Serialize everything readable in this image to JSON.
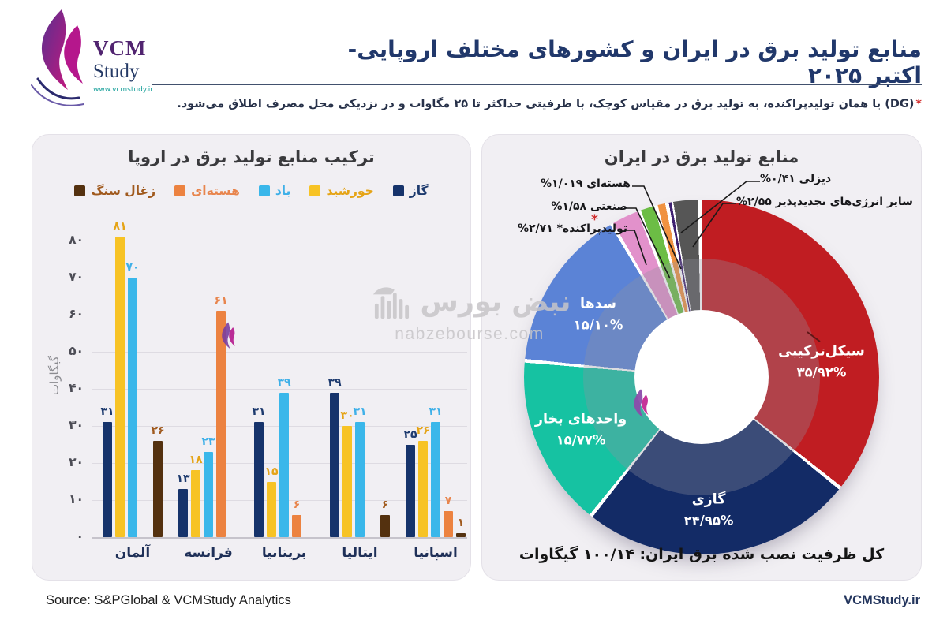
{
  "header": {
    "title": "منابع تولید برق در ایران و کشورهای مختلف اروپایی- اکتبر ۲۰۲۵",
    "subtitle_star": "*",
    "subtitle_dg": "(DG)",
    "subtitle_rest": "یا همان تولیدپراکنده، به تولید برق در مقیاس کوچک، با ظرفیتی حداکثر تا ۲۵ مگاوات و در نزدیکی محل مصرف اطلاق می‌شود."
  },
  "logo": {
    "vcm": "VCM",
    "study": "Study",
    "url": "www.vcmstudy.ir"
  },
  "chart_data": [
    {
      "type": "bar",
      "title": "ترکیب منابع تولید برق در اروپا",
      "ylabel": "گیگاوات",
      "ylim": [
        0,
        80
      ],
      "yticks": [
        "۰",
        "۱۰",
        "۲۰",
        "۳۰",
        "۴۰",
        "۵۰",
        "۶۰",
        "۷۰",
        "۸۰"
      ],
      "grid": true,
      "categories": [
        "آلمان",
        "فرانسه",
        "بریتانیا",
        "ایتالیا",
        "اسپانیا"
      ],
      "series": [
        {
          "name": "گاز",
          "color": "#16336b",
          "label_color": "#1d3a6e",
          "values": [
            31,
            13,
            31,
            39,
            25
          ],
          "labels": [
            "۳۱",
            "۱۳",
            "۳۱",
            "۳۹",
            "۲۵"
          ]
        },
        {
          "name": "خورشید",
          "color": "#f7c325",
          "label_color": "#e5a417",
          "values": [
            81,
            18,
            15,
            30,
            26
          ],
          "labels": [
            "۸۱",
            "۱۸",
            "۱۵",
            "۳۰",
            "۲۶"
          ]
        },
        {
          "name": "باد",
          "color": "#3ab7ea",
          "label_color": "#3fb0e8",
          "values": [
            70,
            23,
            39,
            31,
            31
          ],
          "labels": [
            "۷۰",
            "۲۳",
            "۳۹",
            "۳۱",
            "۳۱"
          ]
        },
        {
          "name": "هسته‌ای",
          "color": "#ec8240",
          "label_color": "#e8854d",
          "values": [
            null,
            61,
            6,
            null,
            7
          ],
          "labels": [
            null,
            "۶۱",
            "۶",
            null,
            "۷"
          ]
        },
        {
          "name": "زغال سنگ",
          "color": "#54310f",
          "label_color": "#a05a1e",
          "values": [
            26,
            null,
            null,
            6,
            1
          ],
          "labels": [
            "۲۶",
            null,
            null,
            "۶",
            "۱"
          ]
        }
      ],
      "legend_position": "top"
    },
    {
      "type": "pie",
      "title": "منابع تولید برق در ایران",
      "total_label": "کل ظرفیت نصب شده برق ایران: ۱۰۰/۱۴ گیگاوات",
      "slices": [
        {
          "name": "سیکل‌ترکیبی",
          "pct": 35.92,
          "pct_label": "۳۵/۹۲%",
          "color": "#c01d22",
          "inner": true
        },
        {
          "name": "گازی",
          "pct": 24.95,
          "pct_label": "۲۴/۹۵%",
          "color": "#132b66",
          "inner": true
        },
        {
          "name": "واحدهای بخار",
          "pct": 15.77,
          "pct_label": "۱۵/۷۷%",
          "color": "#16c2a2",
          "inner": true
        },
        {
          "name": "سدها",
          "pct": 15.1,
          "pct_label": "۱۵/۱۰%",
          "color": "#5b83d6",
          "inner": true
        },
        {
          "name": "تولیدپراکنده",
          "pct": 2.71,
          "pct_label": "۲/۷۱%",
          "color": "#e291cb",
          "callout": "تولیدپراکنده* ۲/۷۱%"
        },
        {
          "name": "صنعتی",
          "pct": 1.58,
          "pct_label": "۱/۵۸%",
          "color": "#6cbd45",
          "callout": "صنعتی ۱/۵۸%"
        },
        {
          "name": "هسته‌ای",
          "pct": 1.019,
          "pct_label": "۱/۰۱۹%",
          "color": "#f09240",
          "callout": "هسته‌ای ۱/۰۱۹%"
        },
        {
          "name": "دیزلی",
          "pct": 0.41,
          "pct_label": "۰/۴۱%",
          "color": "#3f2171",
          "callout": "دیزلی ۰/۴۱%"
        },
        {
          "name": "سایر انرژی‌های تجدیدپذیر",
          "pct": 2.55,
          "pct_label": "۲/۵۵%",
          "color": "#565656",
          "callout": "سایر انرژی‌های تجدیدپذیر ۲/۵۵%"
        }
      ],
      "callout_star": "*"
    }
  ],
  "watermark": {
    "brand": "نبض بورس",
    "domain": "nabzebourse.com"
  },
  "footer": {
    "source": "Source: S&PGlobal & VCMStudy Analytics",
    "site": "VCMStudy.ir"
  }
}
